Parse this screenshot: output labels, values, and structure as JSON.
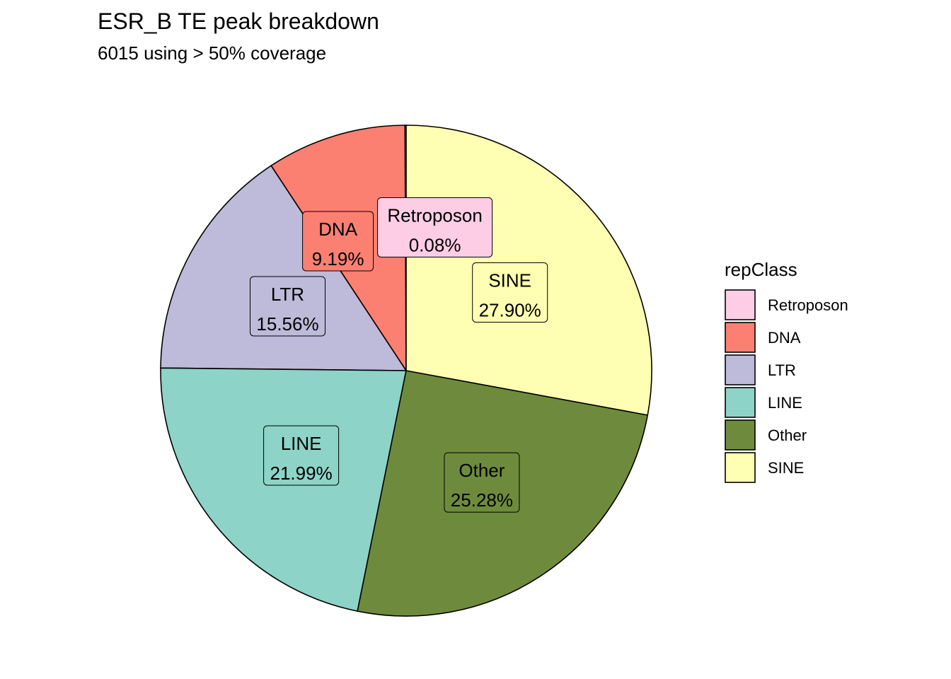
{
  "chart_data": {
    "type": "pie",
    "title": "ESR_B TE peak breakdown",
    "subtitle": "6015 using > 50% coverage",
    "legend": {
      "title": "repClass",
      "placement": "right"
    },
    "slices": [
      {
        "name": "Retroposon",
        "value": 0.08,
        "label": "0.08%",
        "color": "#FCCDE5"
      },
      {
        "name": "DNA",
        "value": 9.19,
        "label": "9.19%",
        "color": "#FB8072"
      },
      {
        "name": "LTR",
        "value": 15.56,
        "label": "15.56%",
        "color": "#BEBADA"
      },
      {
        "name": "LINE",
        "value": 21.99,
        "label": "21.99%",
        "color": "#8DD3C7"
      },
      {
        "name": "Other",
        "value": 25.28,
        "label": "25.28%",
        "color": "#6E8B3D"
      },
      {
        "name": "SINE",
        "value": 27.9,
        "label": "27.90%",
        "color": "#FFFFB3"
      }
    ]
  }
}
